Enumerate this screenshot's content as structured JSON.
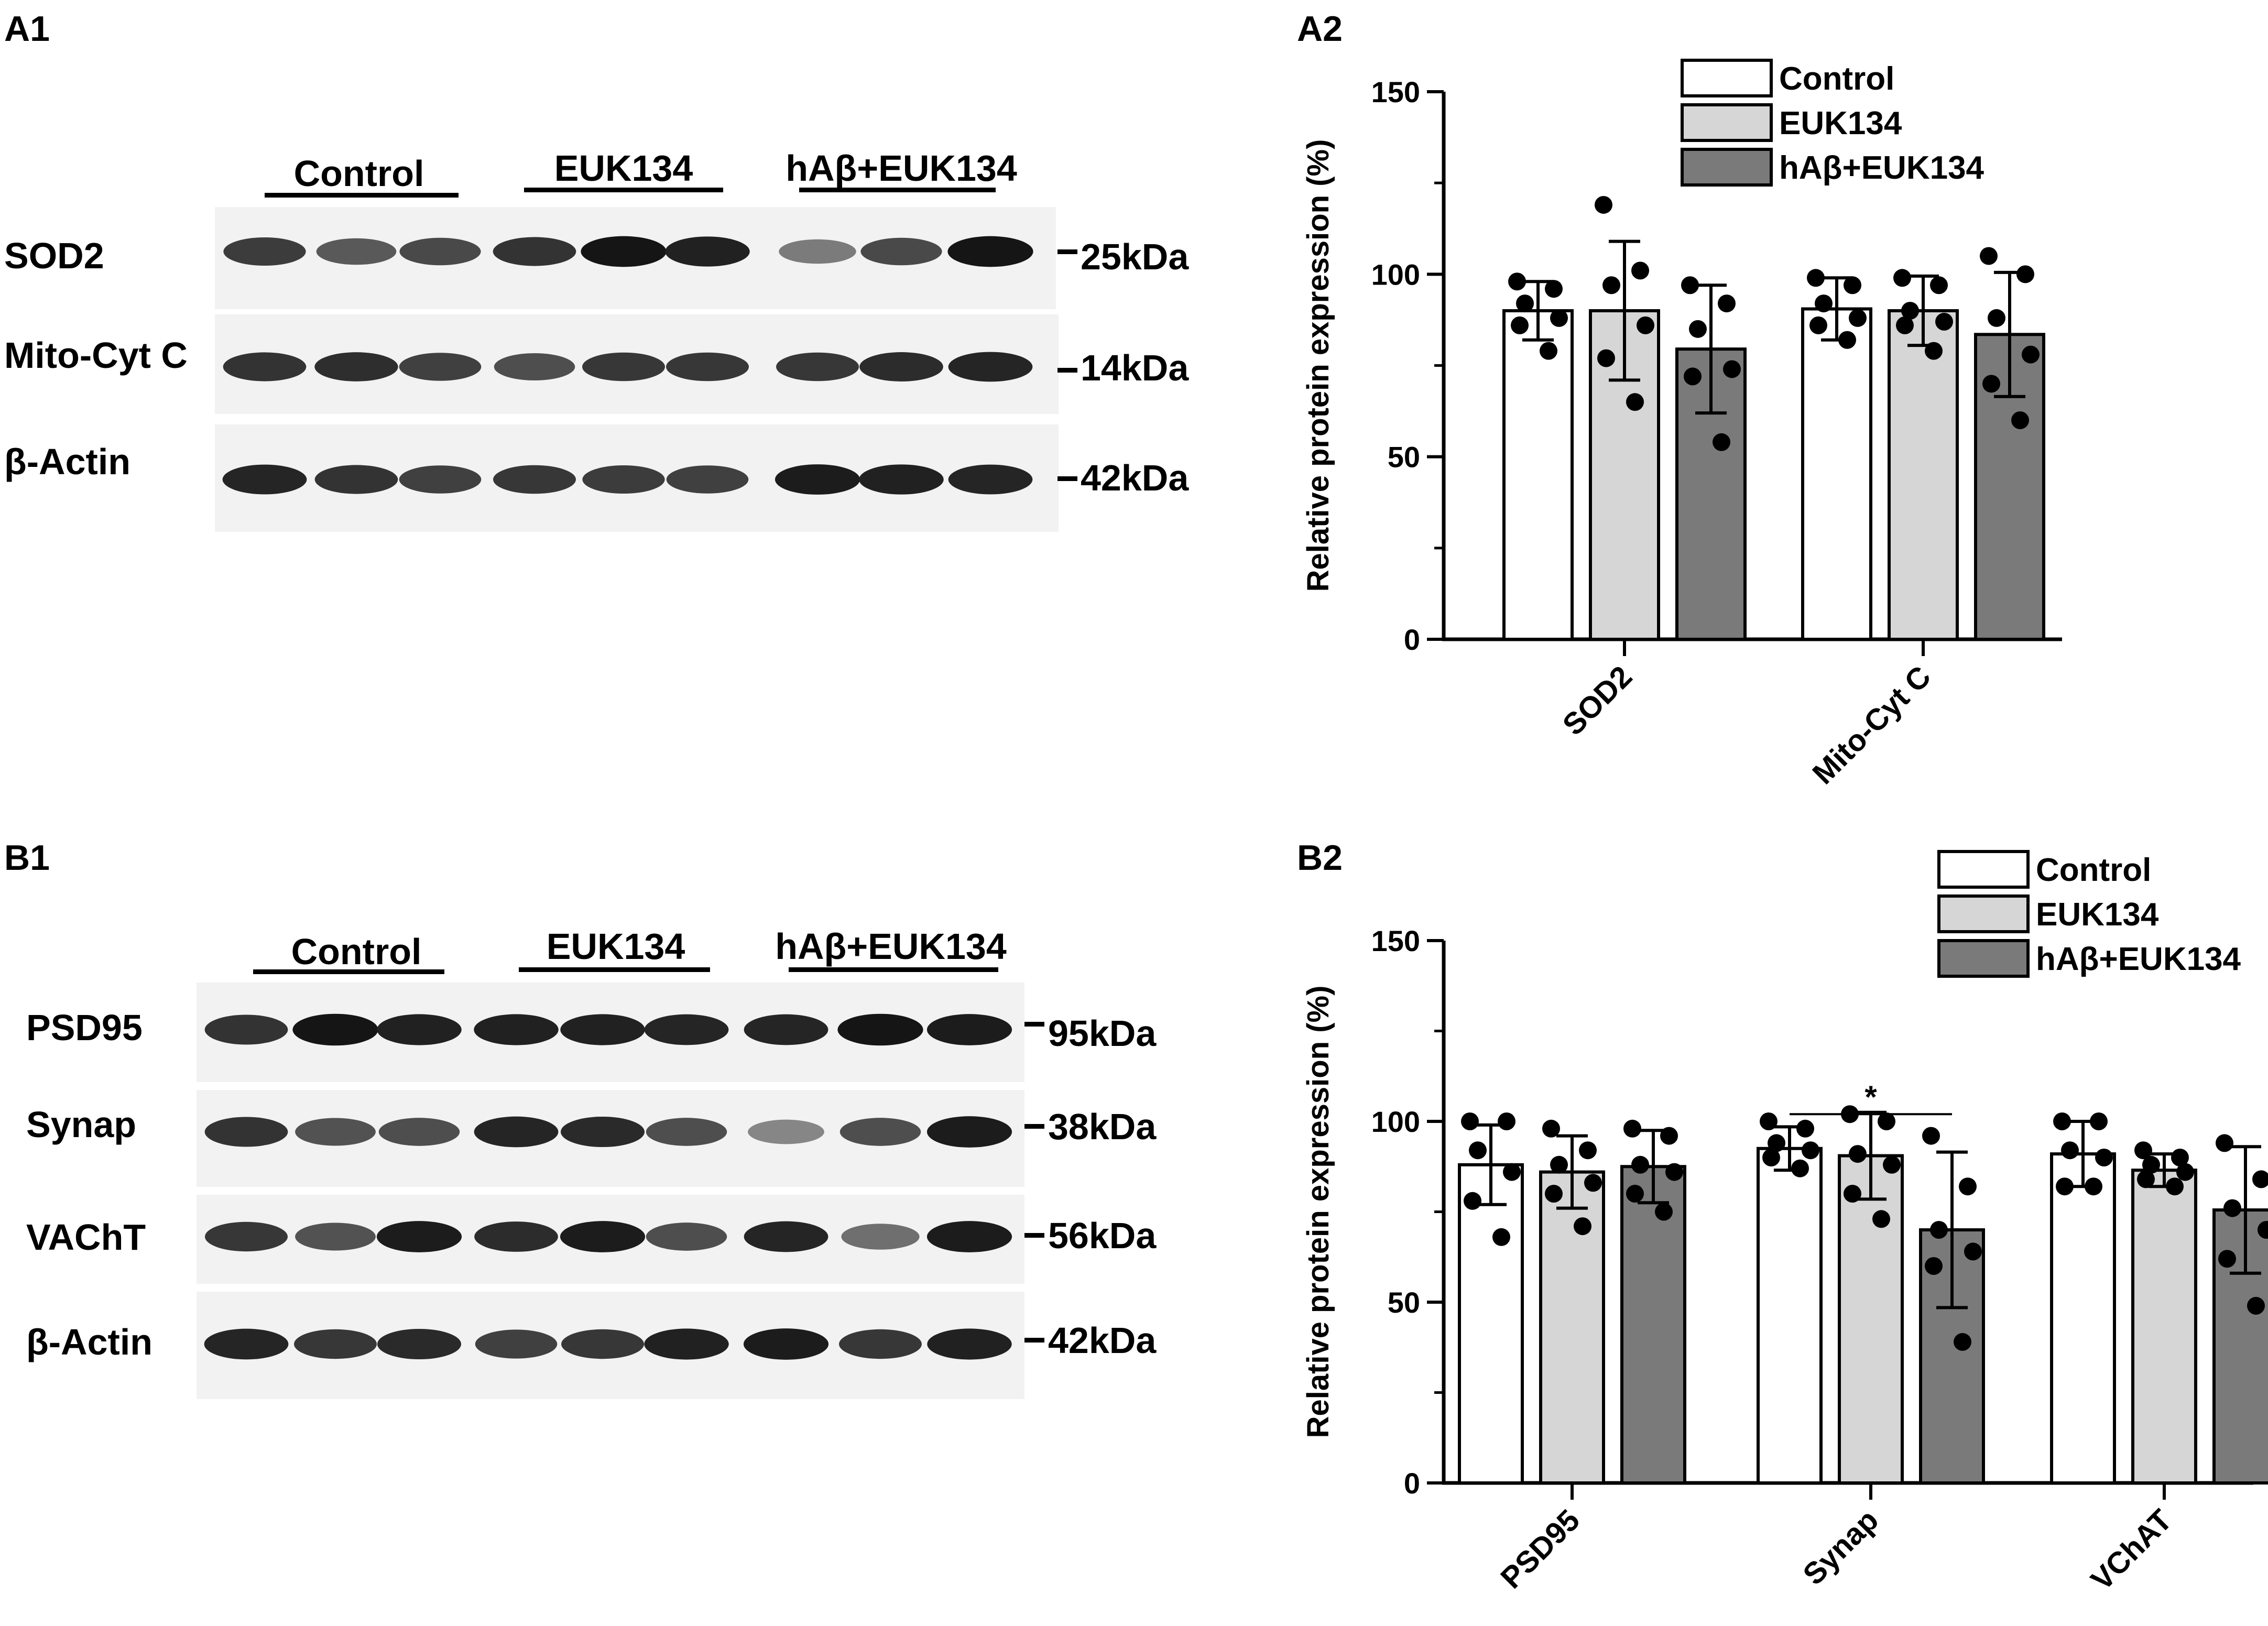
{
  "panels": {
    "A1": {
      "label": "A1",
      "groups": [
        "Control",
        "EUK134",
        "hAβ+EUK134"
      ],
      "rows": [
        {
          "protein": "SOD2",
          "size": "25kDa",
          "intensity": [
            0.78,
            0.65,
            0.72,
            0.82,
            0.95,
            0.9,
            0.5,
            0.72,
            0.95
          ]
        },
        {
          "protein": "Mito-Cyt C",
          "size": "14kDa",
          "intensity": [
            0.82,
            0.84,
            0.76,
            0.7,
            0.8,
            0.8,
            0.8,
            0.85,
            0.88
          ]
        },
        {
          "protein": "β-Actin",
          "size": "42kDa",
          "intensity": [
            0.88,
            0.82,
            0.76,
            0.8,
            0.78,
            0.76,
            0.92,
            0.9,
            0.88
          ]
        }
      ]
    },
    "B1": {
      "label": "B1",
      "groups": [
        "Control",
        "EUK134",
        "hAβ+EUK134"
      ],
      "rows": [
        {
          "protein": "PSD95",
          "size": "95kDa",
          "intensity": [
            0.82,
            0.95,
            0.9,
            0.9,
            0.9,
            0.88,
            0.88,
            0.95,
            0.92
          ]
        },
        {
          "protein": "Synap",
          "size": "38kDa",
          "intensity": [
            0.82,
            0.68,
            0.7,
            0.88,
            0.86,
            0.7,
            0.45,
            0.7,
            0.92
          ]
        },
        {
          "protein": "VAChT",
          "size": "56kDa",
          "intensity": [
            0.8,
            0.68,
            0.92,
            0.85,
            0.92,
            0.7,
            0.88,
            0.55,
            0.92
          ]
        },
        {
          "protein": "β-Actin",
          "size": "42kDa",
          "intensity": [
            0.88,
            0.8,
            0.86,
            0.76,
            0.8,
            0.9,
            0.92,
            0.8,
            0.9
          ]
        }
      ]
    },
    "A2": {
      "label": "A2"
    },
    "B2": {
      "label": "B2"
    }
  },
  "chart_data": [
    {
      "panel": "A2",
      "type": "bar",
      "ylabel": "Relative protein expression (%)",
      "ylim": [
        0,
        150
      ],
      "yticks": [
        0,
        50,
        100,
        150
      ],
      "categories": [
        "SOD2",
        "Mito-Cyt C"
      ],
      "series": [
        {
          "name": "Control",
          "color": "#ffffff",
          "values": [
            90,
            90.5
          ],
          "sd": [
            8,
            8.5
          ],
          "points": [
            [
              98,
              96,
              92,
              88,
              86,
              79
            ],
            [
              99,
              97,
              92,
              88,
              86,
              82
            ]
          ]
        },
        {
          "name": "EUK134",
          "color": "#d6d6d6",
          "values": [
            90,
            90
          ],
          "sd": [
            19,
            9.5
          ],
          "points": [
            [
              119,
              101,
              97,
              86,
              77,
              65
            ],
            [
              99,
              97,
              90,
              87,
              86,
              79
            ]
          ]
        },
        {
          "name": "hAβ+EUK134",
          "color": "#7a7a7a",
          "values": [
            79.5,
            83.5
          ],
          "sd": [
            17.5,
            17
          ],
          "points": [
            [
              97,
              92,
              85,
              74,
              72,
              54
            ],
            [
              105,
              100,
              88,
              78,
              70,
              60
            ]
          ]
        }
      ],
      "legend_position": "top-right",
      "significance": []
    },
    {
      "panel": "B2",
      "type": "bar",
      "ylabel": "Relative protein expression (%)",
      "ylim": [
        0,
        150
      ],
      "yticks": [
        0,
        50,
        100,
        150
      ],
      "categories": [
        "PSD95",
        "Synap",
        "VChAT"
      ],
      "series": [
        {
          "name": "Control",
          "color": "#ffffff",
          "values": [
            88,
            92.5,
            91
          ],
          "sd": [
            11,
            6,
            9
          ],
          "points": [
            [
              100,
              100,
              92,
              86,
              78,
              68
            ],
            [
              100,
              98,
              94,
              92,
              90,
              87
            ],
            [
              100,
              100,
              92,
              90,
              82,
              82
            ]
          ]
        },
        {
          "name": "EUK134",
          "color": "#d6d6d6",
          "values": [
            86,
            90.5,
            86.5
          ],
          "sd": [
            10,
            12,
            4.5
          ],
          "points": [
            [
              98,
              92,
              88,
              83,
              80,
              71
            ],
            [
              102,
              100,
              91,
              88,
              80,
              73
            ],
            [
              92,
              90,
              88,
              86,
              84,
              82
            ]
          ]
        },
        {
          "name": "hAβ+EUK134",
          "color": "#7a7a7a",
          "values": [
            87.5,
            70,
            75.5
          ],
          "sd": [
            10,
            21.5,
            17.5
          ],
          "points": [
            [
              98,
              96,
              88,
              86,
              80,
              75
            ],
            [
              96,
              82,
              70,
              64,
              60,
              39
            ],
            [
              94,
              84,
              76,
              70,
              62,
              49
            ]
          ]
        }
      ],
      "legend_position": "top-right",
      "significance": [
        {
          "label": "*",
          "category": "Synap",
          "from_series": 0,
          "to_series": 2,
          "y": 102
        }
      ]
    }
  ]
}
